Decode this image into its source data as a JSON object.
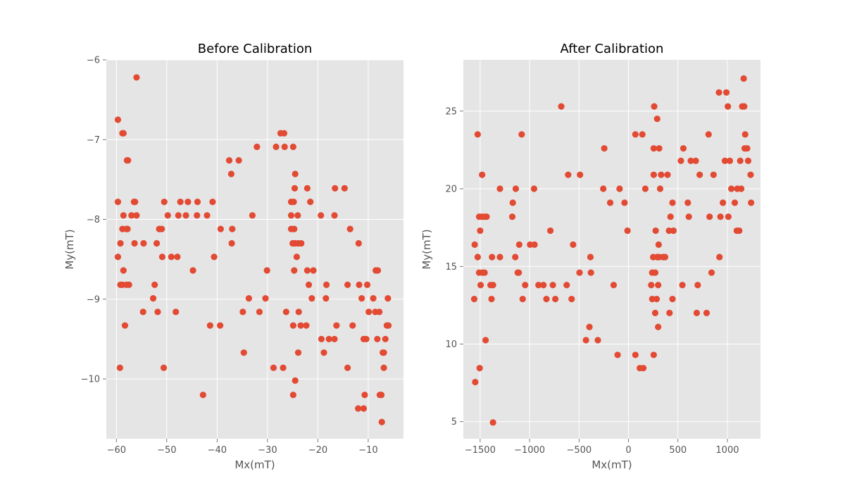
{
  "chart_data": [
    {
      "type": "scatter",
      "title": "Before Calibration",
      "xlabel": "Mx(mT)",
      "ylabel": "My(mT)",
      "xlim": [
        -62,
        -3
      ],
      "ylim": [
        -10.75,
        -6.0
      ],
      "xticks": [
        -60,
        -50,
        -40,
        -30,
        -20,
        -10
      ],
      "yticks": [
        -10,
        -9,
        -8,
        -7,
        -6
      ],
      "grid": true,
      "marker_color": "#e24a33",
      "points": [
        [
          -56,
          -6.22
        ],
        [
          -59.7,
          -6.75
        ],
        [
          -58.8,
          -6.92
        ],
        [
          -58.6,
          -6.92
        ],
        [
          -57.9,
          -7.26
        ],
        [
          -57.7,
          -7.26
        ],
        [
          -59.7,
          -7.78
        ],
        [
          -56.5,
          -7.78
        ],
        [
          -56.3,
          -7.78
        ],
        [
          -58.6,
          -7.95
        ],
        [
          -57,
          -7.95
        ],
        [
          -56,
          -7.95
        ],
        [
          -58.8,
          -8.12
        ],
        [
          -58,
          -8.12
        ],
        [
          -57.8,
          -8.12
        ],
        [
          -59.2,
          -8.3
        ],
        [
          -56.4,
          -8.3
        ],
        [
          -54.6,
          -8.3
        ],
        [
          -59.7,
          -8.47
        ],
        [
          -58.6,
          -8.64
        ],
        [
          -58.8,
          -8.82
        ],
        [
          -58,
          -8.82
        ],
        [
          -57.5,
          -8.82
        ],
        [
          -59.2,
          -8.82
        ],
        [
          -54.7,
          -9.16
        ],
        [
          -58.3,
          -9.33
        ],
        [
          -59.3,
          -9.86
        ],
        [
          -50.5,
          -7.78
        ],
        [
          -47.3,
          -7.78
        ],
        [
          -45.8,
          -7.78
        ],
        [
          -43.9,
          -7.78
        ],
        [
          -40.9,
          -7.78
        ],
        [
          -49.8,
          -7.95
        ],
        [
          -47.7,
          -7.95
        ],
        [
          -46.2,
          -7.95
        ],
        [
          -44,
          -7.95
        ],
        [
          -42,
          -7.95
        ],
        [
          -51.5,
          -8.12
        ],
        [
          -51,
          -8.12
        ],
        [
          -52,
          -8.3
        ],
        [
          -50.9,
          -8.47
        ],
        [
          -49.1,
          -8.47
        ],
        [
          -47.9,
          -8.47
        ],
        [
          -44.8,
          -8.64
        ],
        [
          -52.4,
          -8.82
        ],
        [
          -52.7,
          -8.99
        ],
        [
          -51.8,
          -9.16
        ],
        [
          -48.2,
          -9.16
        ],
        [
          -50.6,
          -9.86
        ],
        [
          -42.8,
          -10.2
        ],
        [
          -40.6,
          -8.47
        ],
        [
          -41.4,
          -9.33
        ],
        [
          -39.4,
          -9.33
        ],
        [
          -39.3,
          -8.12
        ],
        [
          -37.6,
          -7.26
        ],
        [
          -35.7,
          -7.26
        ],
        [
          -37.2,
          -7.43
        ],
        [
          -37,
          -8.12
        ],
        [
          -37.1,
          -8.3
        ],
        [
          -33,
          -7.95
        ],
        [
          -32.1,
          -7.09
        ],
        [
          -28.3,
          -7.09
        ],
        [
          -27.4,
          -6.92
        ],
        [
          -26.7,
          -6.92
        ],
        [
          -26.6,
          -7.09
        ],
        [
          -33.7,
          -8.99
        ],
        [
          -34.9,
          -9.16
        ],
        [
          -34.7,
          -9.67
        ],
        [
          -31.6,
          -9.16
        ],
        [
          -30.4,
          -8.99
        ],
        [
          -30.1,
          -8.64
        ],
        [
          -28.8,
          -9.86
        ],
        [
          -26.9,
          -9.86
        ],
        [
          -26.3,
          -9.16
        ],
        [
          -24.9,
          -7.09
        ],
        [
          -24.5,
          -7.43
        ],
        [
          -24.6,
          -7.61
        ],
        [
          -24.8,
          -7.78
        ],
        [
          -25.3,
          -7.78
        ],
        [
          -25.3,
          -7.95
        ],
        [
          -24,
          -7.95
        ],
        [
          -25.3,
          -8.12
        ],
        [
          -24.7,
          -8.12
        ],
        [
          -25,
          -8.3
        ],
        [
          -24.5,
          -8.3
        ],
        [
          -23.9,
          -8.3
        ],
        [
          -23.3,
          -8.3
        ],
        [
          -24.2,
          -8.47
        ],
        [
          -24.7,
          -8.64
        ],
        [
          -23.8,
          -9.16
        ],
        [
          -24.9,
          -9.33
        ],
        [
          -23.4,
          -9.33
        ],
        [
          -22.3,
          -9.33
        ],
        [
          -23.9,
          -9.67
        ],
        [
          -24.5,
          -10.02
        ],
        [
          -24.9,
          -10.2
        ],
        [
          -22.1,
          -7.61
        ],
        [
          -21.5,
          -7.78
        ],
        [
          -22.1,
          -8.64
        ],
        [
          -20.9,
          -8.64
        ],
        [
          -21.8,
          -8.82
        ],
        [
          -21.2,
          -8.99
        ],
        [
          -19.4,
          -7.95
        ],
        [
          -19.3,
          -9.5
        ],
        [
          -18.8,
          -9.67
        ],
        [
          -18.3,
          -8.82
        ],
        [
          -18.4,
          -8.99
        ],
        [
          -17.8,
          -9.5
        ],
        [
          -16.6,
          -7.61
        ],
        [
          -16.7,
          -7.95
        ],
        [
          -16.7,
          -9.5
        ],
        [
          -16.3,
          -9.33
        ],
        [
          -14.7,
          -7.61
        ],
        [
          -14.1,
          -8.82
        ],
        [
          -14.1,
          -9.86
        ],
        [
          -13.6,
          -8.12
        ],
        [
          -13.1,
          -9.33
        ],
        [
          -11.9,
          -8.3
        ],
        [
          -11.8,
          -8.82
        ],
        [
          -11.3,
          -8.99
        ],
        [
          -10.9,
          -9.5
        ],
        [
          -10.4,
          -9.5
        ],
        [
          -10.7,
          -10.2
        ],
        [
          -10.9,
          -10.37
        ],
        [
          -12,
          -10.37
        ],
        [
          -10.2,
          -8.82
        ],
        [
          -9.9,
          -9.16
        ],
        [
          -9,
          -8.99
        ],
        [
          -8.6,
          -9.16
        ],
        [
          -8.5,
          -8.64
        ],
        [
          -8.1,
          -8.64
        ],
        [
          -8.2,
          -9.5
        ],
        [
          -7.8,
          -9.16
        ],
        [
          -7.7,
          -10.2
        ],
        [
          -7.4,
          -10.2
        ],
        [
          -7.3,
          -10.54
        ],
        [
          -7.1,
          -9.67
        ],
        [
          -6.9,
          -9.67
        ],
        [
          -6.9,
          -9.86
        ],
        [
          -6.6,
          -9.5
        ],
        [
          -6.1,
          -8.99
        ],
        [
          -6.3,
          -9.33
        ],
        [
          -6,
          -9.33
        ]
      ]
    },
    {
      "type": "scatter",
      "title": "After Calibration",
      "xlabel": "Mx(mT)",
      "ylabel": "My(mT)",
      "xlim": [
        -1670,
        1335
      ],
      "ylim": [
        3.9,
        28.3
      ],
      "xticks": [
        -1500,
        -1000,
        -500,
        0,
        500,
        1000
      ],
      "yticks": [
        5,
        10,
        15,
        20,
        25
      ],
      "grid": true,
      "marker_color": "#e24a33",
      "points": [
        [
          -1550,
          7.55
        ],
        [
          -1505,
          8.45
        ],
        [
          -1370,
          4.95
        ],
        [
          -1445,
          10.25
        ],
        [
          -1560,
          12.9
        ],
        [
          -1495,
          13.8
        ],
        [
          -1510,
          14.6
        ],
        [
          -1475,
          14.6
        ],
        [
          -1455,
          14.6
        ],
        [
          -1525,
          15.6
        ],
        [
          -1555,
          16.4
        ],
        [
          -1500,
          17.3
        ],
        [
          -1510,
          18.2
        ],
        [
          -1485,
          18.2
        ],
        [
          -1460,
          18.2
        ],
        [
          -1435,
          18.2
        ],
        [
          -1480,
          20.9
        ],
        [
          -1525,
          23.5
        ],
        [
          -1395,
          13.8
        ],
        [
          -1370,
          13.8
        ],
        [
          -1385,
          12.9
        ],
        [
          -1380,
          15.6
        ],
        [
          -1300,
          15.6
        ],
        [
          -1300,
          20
        ],
        [
          -1175,
          18.2
        ],
        [
          -1170,
          19.1
        ],
        [
          -1145,
          15.6
        ],
        [
          -1120,
          14.6
        ],
        [
          -1110,
          14.6
        ],
        [
          -1140,
          20
        ],
        [
          -1105,
          16.4
        ],
        [
          -1080,
          23.5
        ],
        [
          -1070,
          12.9
        ],
        [
          -1045,
          13.8
        ],
        [
          -995,
          16.4
        ],
        [
          -950,
          16.4
        ],
        [
          -955,
          20
        ],
        [
          -910,
          13.8
        ],
        [
          -860,
          13.8
        ],
        [
          -830,
          12.9
        ],
        [
          -790,
          17.3
        ],
        [
          -765,
          13.8
        ],
        [
          -740,
          12.9
        ],
        [
          -680,
          25.3
        ],
        [
          -625,
          13.8
        ],
        [
          -610,
          20.9
        ],
        [
          -575,
          12.9
        ],
        [
          -560,
          16.4
        ],
        [
          -490,
          20.9
        ],
        [
          -495,
          14.6
        ],
        [
          -430,
          10.25
        ],
        [
          -395,
          11.1
        ],
        [
          -380,
          14.6
        ],
        [
          -385,
          15.6
        ],
        [
          -310,
          10.25
        ],
        [
          -255,
          20
        ],
        [
          -245,
          22.6
        ],
        [
          -185,
          19.1
        ],
        [
          -150,
          13.8
        ],
        [
          -110,
          9.3
        ],
        [
          -90,
          20
        ],
        [
          -40,
          19.1
        ],
        [
          -10,
          17.3
        ],
        [
          70,
          9.3
        ],
        [
          70,
          23.5
        ],
        [
          115,
          8.45
        ],
        [
          150,
          8.45
        ],
        [
          140,
          23.5
        ],
        [
          170,
          20
        ],
        [
          230,
          13.8
        ],
        [
          240,
          14.6
        ],
        [
          240,
          12.9
        ],
        [
          250,
          15.6
        ],
        [
          255,
          20.9
        ],
        [
          255,
          9.3
        ],
        [
          255,
          22.6
        ],
        [
          260,
          25.3
        ],
        [
          270,
          12
        ],
        [
          270,
          14.6
        ],
        [
          275,
          17.3
        ],
        [
          285,
          12.9
        ],
        [
          290,
          15.6
        ],
        [
          290,
          24.5
        ],
        [
          300,
          13.8
        ],
        [
          300,
          11.1
        ],
        [
          305,
          16.4
        ],
        [
          310,
          15.6
        ],
        [
          310,
          22.6
        ],
        [
          320,
          20
        ],
        [
          330,
          20.9
        ],
        [
          350,
          15.6
        ],
        [
          370,
          15.6
        ],
        [
          395,
          20.9
        ],
        [
          410,
          17.3
        ],
        [
          415,
          12
        ],
        [
          425,
          18.2
        ],
        [
          445,
          12.9
        ],
        [
          445,
          19.1
        ],
        [
          455,
          17.3
        ],
        [
          530,
          21.8
        ],
        [
          545,
          13.8
        ],
        [
          555,
          22.6
        ],
        [
          600,
          19.1
        ],
        [
          610,
          18.2
        ],
        [
          630,
          21.8
        ],
        [
          680,
          21.8
        ],
        [
          690,
          12
        ],
        [
          700,
          13.8
        ],
        [
          720,
          20.9
        ],
        [
          790,
          12
        ],
        [
          810,
          23.5
        ],
        [
          820,
          18.2
        ],
        [
          840,
          14.6
        ],
        [
          860,
          20.9
        ],
        [
          915,
          26.2
        ],
        [
          920,
          15.6
        ],
        [
          930,
          18.2
        ],
        [
          955,
          19.1
        ],
        [
          975,
          21.8
        ],
        [
          990,
          26.2
        ],
        [
          1005,
          25.3
        ],
        [
          1010,
          18.2
        ],
        [
          1025,
          21.8
        ],
        [
          1040,
          20
        ],
        [
          1075,
          19.1
        ],
        [
          1095,
          17.3
        ],
        [
          1100,
          20
        ],
        [
          1120,
          17.3
        ],
        [
          1140,
          20
        ],
        [
          1130,
          21.8
        ],
        [
          1150,
          25.3
        ],
        [
          1165,
          27.1
        ],
        [
          1170,
          25.3
        ],
        [
          1175,
          22.6
        ],
        [
          1180,
          23.5
        ],
        [
          1200,
          22.6
        ],
        [
          1210,
          21.8
        ],
        [
          1235,
          20.9
        ],
        [
          1240,
          19.1
        ]
      ]
    }
  ]
}
